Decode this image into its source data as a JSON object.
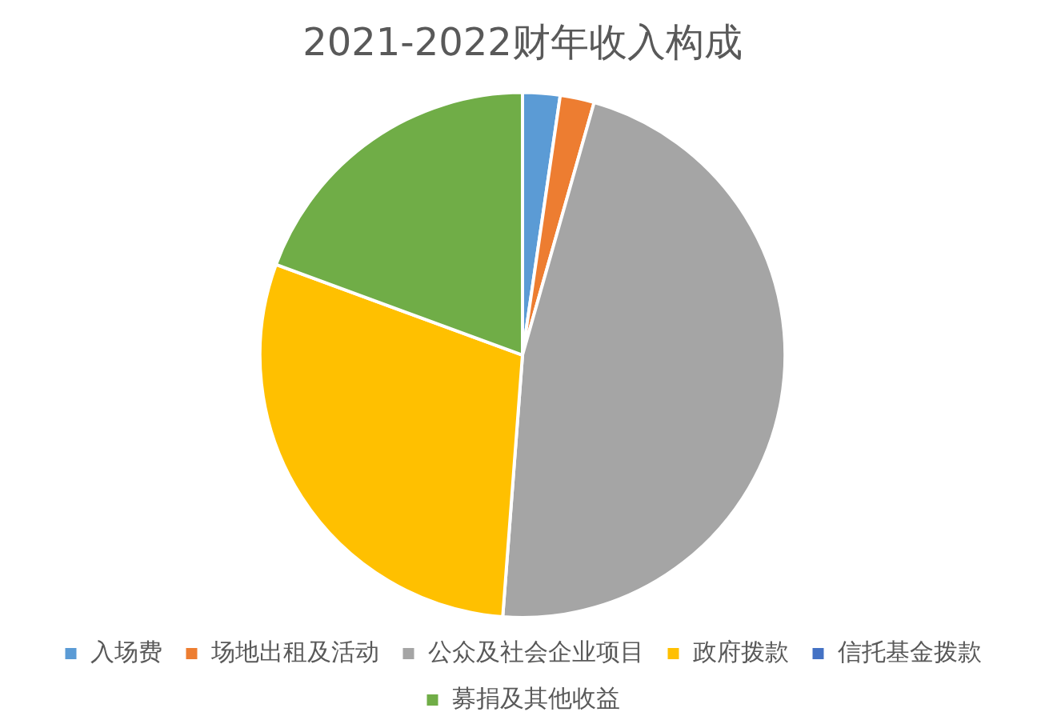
{
  "chart_data": {
    "type": "pie",
    "title": "2021-2022财年收入构成",
    "categories": [
      "入场费",
      "场地出租及活动",
      "公众及社会企业项目",
      "政府拨款",
      "信托基金拨款",
      "募捐及其他收益"
    ],
    "values": [
      2.3,
      2.1,
      46.8,
      29.4,
      0,
      19.4
    ],
    "colors": [
      "#5b9bd5",
      "#ed7d31",
      "#a5a5a5",
      "#ffc000",
      "#4472c4",
      "#70ad47"
    ],
    "legend": "bottom"
  }
}
